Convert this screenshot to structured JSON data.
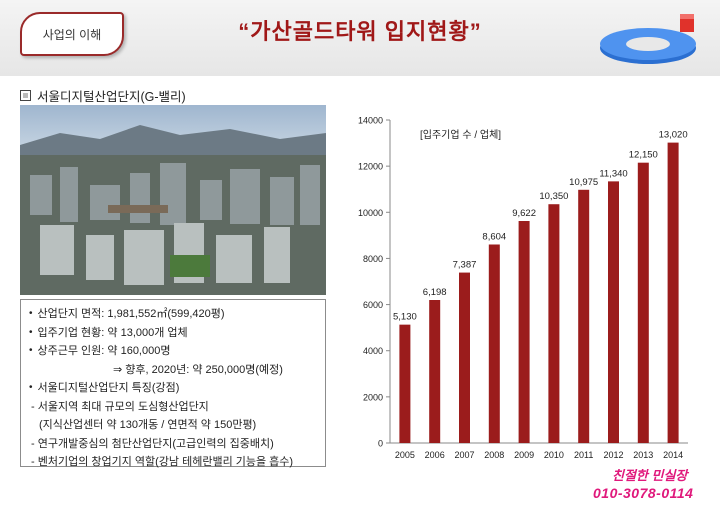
{
  "header": {
    "tab_label": "사업의 이해",
    "title": "“가산골드타워 입지현황”"
  },
  "section": {
    "label": "서울디지털산업단지(G-밸리)"
  },
  "info": {
    "items": [
      "산업단지 면적: 1,981,552㎡(599,420평)",
      "입주기업 현황: 약 13,000개 업체",
      "상주근무 인원: 약 160,000명",
      "⇒ 향후, 2020년: 약 250,000명(예정)",
      "서울디지털산업단지 특징(강점)",
      "- 서울지역 최대 규모의 도심형산업단지",
      "(지식산업센터 약 130개동 / 연면적 약 150만평)",
      "- 연구개발중심의 첨단산업단지(고급인력의 집중배치)",
      "- 벤처기업의 창업기지 역할(강남 테헤란밸리 기능을 흡수)"
    ]
  },
  "promo": {
    "line1": "친절한 민실장",
    "line2": "010-3078-0114"
  },
  "colors": {
    "bar": "#9b1c1c",
    "title": "#a01818",
    "promo": "#e0197c"
  },
  "chart_data": {
    "type": "bar",
    "title": "[입주기업 수 / 업체]",
    "categories": [
      "2005",
      "2006",
      "2007",
      "2008",
      "2009",
      "2010",
      "2011",
      "2012",
      "2013",
      "2014"
    ],
    "values": [
      5130,
      6198,
      7387,
      8604,
      9622,
      10350,
      10975,
      11340,
      12150,
      13020
    ],
    "value_labels": [
      "5,130",
      "6,198",
      "7,387",
      "8,604",
      "9,622",
      "10,350",
      "10,975",
      "11,340",
      "12,150",
      "13,020"
    ],
    "ylim": [
      0,
      14000
    ],
    "yticks": [
      0,
      2000,
      4000,
      6000,
      8000,
      10000,
      12000,
      14000
    ],
    "grid": false,
    "xlabel": "",
    "ylabel": ""
  }
}
